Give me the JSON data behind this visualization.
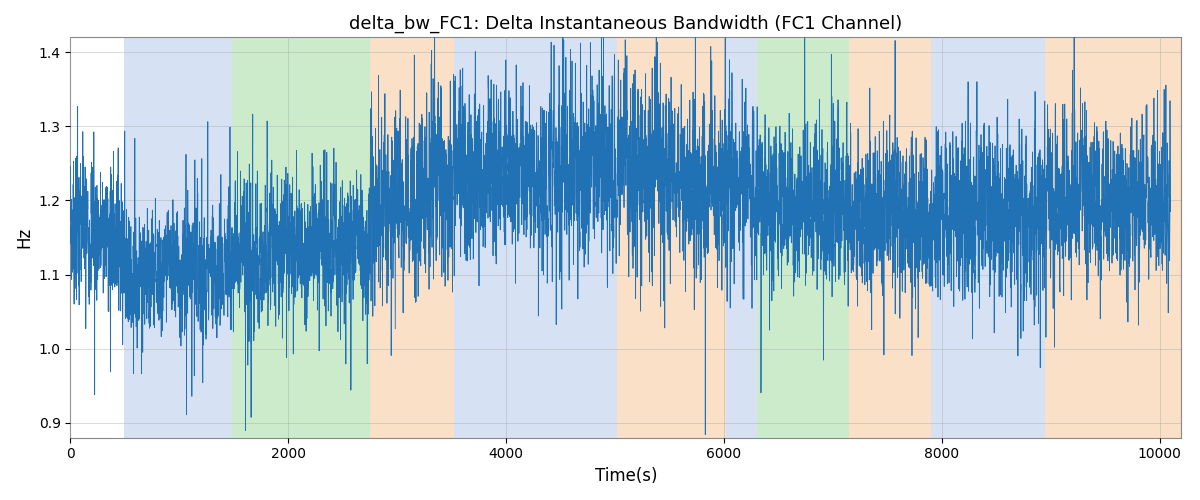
{
  "title": "delta_bw_FC1: Delta Instantaneous Bandwidth (FC1 Channel)",
  "xlabel": "Time(s)",
  "ylabel": "Hz",
  "xlim": [
    0,
    10200
  ],
  "ylim": [
    0.88,
    1.42
  ],
  "yticks": [
    0.9,
    1.0,
    1.1,
    1.2,
    1.3,
    1.4
  ],
  "xticks": [
    0,
    2000,
    4000,
    6000,
    8000,
    10000
  ],
  "line_color": "#2171b5",
  "line_width": 0.6,
  "grid_color": "#aaaaaa",
  "bands": [
    {
      "xmin": 490,
      "xmax": 1480,
      "color": "#aec6e8",
      "alpha": 0.5
    },
    {
      "xmin": 1480,
      "xmax": 2750,
      "color": "#98d898",
      "alpha": 0.5
    },
    {
      "xmin": 2750,
      "xmax": 3520,
      "color": "#f5c89a",
      "alpha": 0.55
    },
    {
      "xmin": 3520,
      "xmax": 5020,
      "color": "#aec6e8",
      "alpha": 0.5
    },
    {
      "xmin": 5020,
      "xmax": 6020,
      "color": "#f5c89a",
      "alpha": 0.55
    },
    {
      "xmin": 6020,
      "xmax": 6300,
      "color": "#aec6e8",
      "alpha": 0.5
    },
    {
      "xmin": 6300,
      "xmax": 7150,
      "color": "#98d898",
      "alpha": 0.5
    },
    {
      "xmin": 7150,
      "xmax": 7900,
      "color": "#f5c89a",
      "alpha": 0.55
    },
    {
      "xmin": 7900,
      "xmax": 8950,
      "color": "#aec6e8",
      "alpha": 0.5
    },
    {
      "xmin": 8950,
      "xmax": 10200,
      "color": "#f5c89a",
      "alpha": 0.55
    }
  ],
  "segments": [
    {
      "t0": 0,
      "t1": 500,
      "mean": 1.17,
      "std": 0.045,
      "trend": -0.02
    },
    {
      "t0": 500,
      "t1": 1480,
      "mean": 1.1,
      "std": 0.04,
      "trend": 0.01
    },
    {
      "t0": 1480,
      "t1": 2750,
      "mean": 1.12,
      "std": 0.045,
      "trend": 0.03
    },
    {
      "t0": 2750,
      "t1": 3520,
      "mean": 1.18,
      "std": 0.06,
      "trend": 0.04
    },
    {
      "t0": 3520,
      "t1": 5020,
      "mean": 1.24,
      "std": 0.055,
      "trend": 0.0
    },
    {
      "t0": 5020,
      "t1": 6020,
      "mean": 1.24,
      "std": 0.06,
      "trend": -0.02
    },
    {
      "t0": 6020,
      "t1": 6300,
      "mean": 1.22,
      "std": 0.06,
      "trend": 0.0
    },
    {
      "t0": 6300,
      "t1": 7150,
      "mean": 1.2,
      "std": 0.055,
      "trend": -0.01
    },
    {
      "t0": 7150,
      "t1": 7900,
      "mean": 1.18,
      "std": 0.055,
      "trend": 0.0
    },
    {
      "t0": 7900,
      "t1": 8950,
      "mean": 1.18,
      "std": 0.055,
      "trend": 0.0
    },
    {
      "t0": 8950,
      "t1": 10200,
      "mean": 1.2,
      "std": 0.05,
      "trend": 0.0
    }
  ],
  "n_per_second": 0.8,
  "seed": 7
}
